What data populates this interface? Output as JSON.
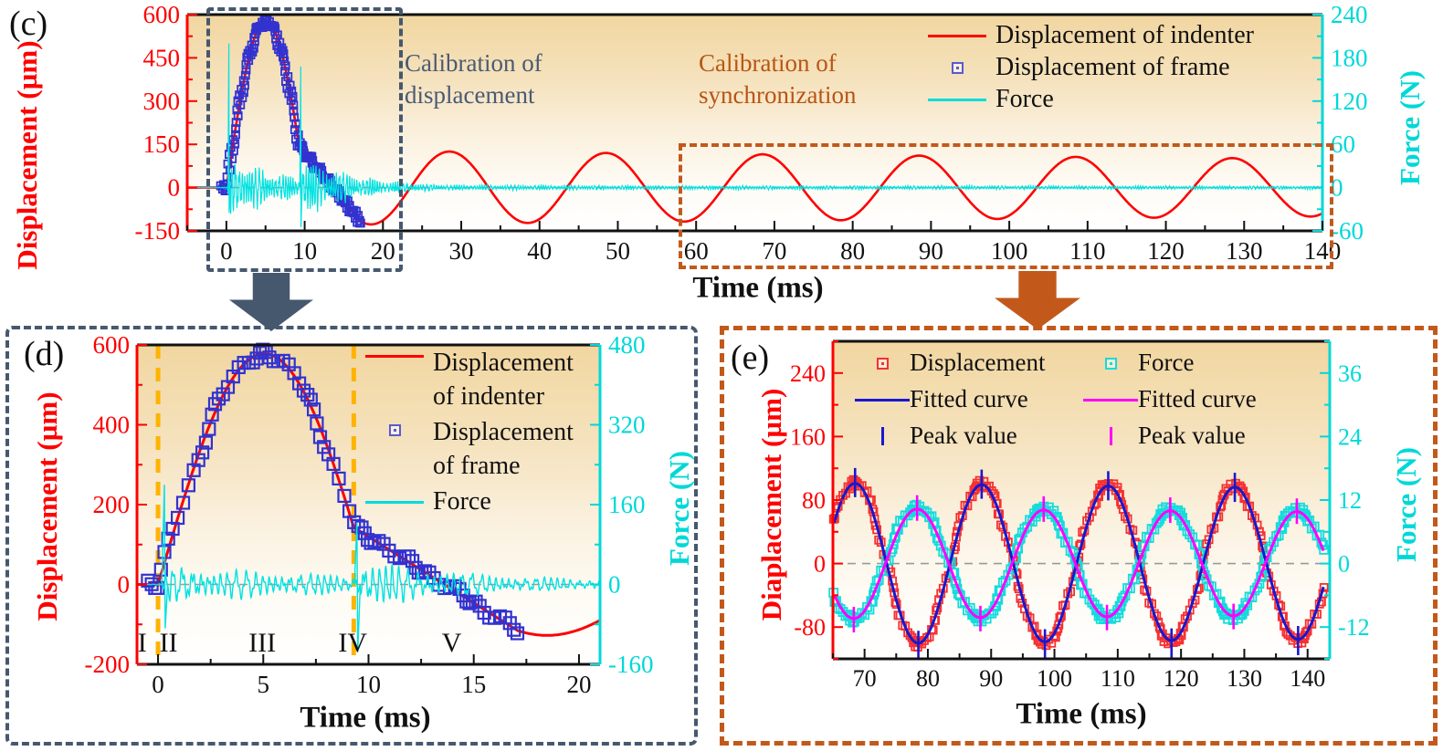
{
  "figure": {
    "background": "#ffffff",
    "callout_arrows": [
      {
        "name": "to-panel-d",
        "color": "#46586e"
      },
      {
        "name": "to-panel-e",
        "color": "#c2591b"
      }
    ],
    "colors": {
      "indenter_red": "#fe0000",
      "frame_blue": "#3232d0",
      "force_cyan": "#00dcdc",
      "fitted_blue": "#1818cf",
      "fitted_magenta": "#ff00ff",
      "box_slate": "#46586e",
      "box_orange": "#c2591b",
      "guide_yellow": "#ffb300",
      "panel_gradient_top": "#f1d6a0"
    }
  },
  "chart_data": [
    {
      "id": "c",
      "panel_label": "(c)",
      "type": "line",
      "xlabel": "Time (ms)",
      "ylabel_left": "Displacement (µm)",
      "ylabel_right": "Force (N)",
      "xlim": [
        -5,
        140
      ],
      "ylim_left": [
        -150,
        600
      ],
      "ylim_right": [
        -60,
        240
      ],
      "xticks": [
        0,
        10,
        20,
        30,
        40,
        50,
        60,
        70,
        80,
        90,
        100,
        110,
        120,
        130,
        140
      ],
      "x_minor_step": 5,
      "yticks_left": [
        600,
        450,
        300,
        150,
        0,
        -150
      ],
      "yl_minor_step": 75,
      "yticks_right": [
        240,
        180,
        120,
        60,
        0,
        -60
      ],
      "yr_minor_step": 30,
      "zero_line": true,
      "legend": [
        {
          "label": "Displacement of indenter",
          "marker": "line",
          "color": "#fe0000"
        },
        {
          "label": "Displacement of frame",
          "marker": "square",
          "color": "#5a5ad2"
        },
        {
          "label": "Force",
          "marker": "line",
          "color": "#00dcdc"
        }
      ],
      "annotations": [
        {
          "text": "Calibration of displacement",
          "color": "#4a5a74"
        },
        {
          "text": "Calibration of synchronization",
          "color": "#b85513"
        }
      ],
      "series": [
        {
          "name": "Displacement of indenter",
          "axis": "left",
          "type": "segments_line",
          "color": "#fe0000",
          "width": 2.6,
          "segments": [
            {
              "type": "flat",
              "t0": -5,
              "t1": 0,
              "v": 0
            },
            {
              "type": "halfsine",
              "t0": 0,
              "t1": 9.3,
              "peak": 578,
              "t_peak": 5.05
            },
            {
              "type": "line",
              "t0": 9.3,
              "t1": 17.1,
              "v0": 143,
              "v1": -116
            },
            {
              "type": "damped_cos",
              "t0": 17.1,
              "t1": 140,
              "amp": 125,
              "period": 20,
              "t_phase": 28.5,
              "decay": 0.002
            }
          ]
        },
        {
          "name": "Displacement of frame",
          "axis": "left",
          "type": "squares_segments",
          "use_series": 0,
          "color": "#3232d0",
          "t0": -0.6,
          "t1": 17.1,
          "step": 0.1,
          "size": 8,
          "jitter": 3.5,
          "stroke_width": 1.8
        },
        {
          "name": "Force",
          "axis": "right",
          "type": "force_noise",
          "color": "#00e2e2",
          "width": 1.2,
          "dt": 0.05,
          "freq": 2.7,
          "amp_profile": [
            [
              -5,
              0
            ],
            [
              0.15,
              1
            ],
            [
              0.5,
              40
            ],
            [
              1.5,
              46
            ],
            [
              3,
              34
            ],
            [
              5,
              27
            ],
            [
              7,
              21
            ],
            [
              9.3,
              16
            ],
            [
              9.7,
              48
            ],
            [
              11,
              38
            ],
            [
              13,
              30
            ],
            [
              15,
              24
            ],
            [
              17,
              18
            ],
            [
              19,
              13
            ],
            [
              22,
              9
            ],
            [
              26,
              5
            ],
            [
              30,
              4
            ],
            [
              60,
              3
            ],
            [
              140,
              2.5
            ]
          ],
          "spikes": [
            {
              "t": 0.32,
              "up": 200,
              "down": -35
            },
            {
              "t": 9.5,
              "up": 168,
              "down": -55
            }
          ]
        }
      ]
    },
    {
      "id": "d",
      "panel_label": "(d)",
      "type": "line",
      "xlabel": "Time (ms)",
      "ylabel_left": "Displacement (µm)",
      "ylabel_right": "Force (N)",
      "xlim": [
        -1,
        21
      ],
      "ylim_left": [
        -200,
        600
      ],
      "ylim_right": [
        -160,
        480
      ],
      "xticks": [
        0,
        5,
        10,
        15,
        20
      ],
      "x_minor_step": 2.5,
      "yticks_left": [
        600,
        400,
        200,
        0,
        -200
      ],
      "yl_minor_step": 100,
      "yticks_right": [
        480,
        320,
        160,
        0,
        -160
      ],
      "yr_minor_step": 80,
      "zero_line": true,
      "vlines": {
        "color": "#ffb300",
        "t": [
          0,
          9.3
        ]
      },
      "phase_markers": {
        "labels": [
          "I",
          "II",
          "III",
          "IV",
          "V"
        ],
        "t": [
          -0.75,
          0.5,
          4.95,
          9.25,
          13.95
        ],
        "v": -168
      },
      "legend": [
        {
          "label": "Displacement of indenter",
          "marker": "line",
          "color": "#fe0000"
        },
        {
          "label": "Displacement of frame",
          "marker": "square",
          "color": "#5a5ad2"
        },
        {
          "label": "Force",
          "marker": "line",
          "color": "#00dcdc"
        }
      ],
      "series": [
        {
          "name": "Displacement of indenter",
          "axis": "left",
          "type": "segments_line",
          "color": "#fe0000",
          "width": 3,
          "segments": [
            {
              "type": "flat",
              "t0": -1,
              "t1": 0,
              "v": 0
            },
            {
              "type": "halfsine",
              "t0": 0,
              "t1": 9.3,
              "peak": 578,
              "t_peak": 5.05
            },
            {
              "type": "line",
              "t0": 9.3,
              "t1": 17.1,
              "v0": 143,
              "v1": -116
            },
            {
              "type": "damped_cos",
              "t0": 17.1,
              "t1": 21,
              "amp": 125,
              "period": 20,
              "t_phase": 28.5,
              "decay": 0.002
            }
          ]
        },
        {
          "name": "Displacement of frame",
          "axis": "left",
          "type": "squares_segments",
          "use_series": 0,
          "color": "#3232d0",
          "t0": -0.6,
          "t1": 17.1,
          "step": 0.2,
          "size": 13,
          "jitter": 4.5,
          "stroke_width": 2.2
        },
        {
          "name": "Force",
          "axis": "right",
          "type": "force_noise",
          "color": "#00e2e2",
          "width": 1.4,
          "dt": 0.02,
          "freq": 2.7,
          "amp_profile": [
            [
              -1,
              0
            ],
            [
              0.15,
              1
            ],
            [
              0.5,
              36
            ],
            [
              1.2,
              44
            ],
            [
              2.5,
              34
            ],
            [
              4,
              30
            ],
            [
              6,
              26
            ],
            [
              8,
              22
            ],
            [
              9.3,
              18
            ],
            [
              9.8,
              52
            ],
            [
              11,
              42
            ],
            [
              13,
              32
            ],
            [
              15,
              24
            ],
            [
              17,
              18
            ],
            [
              19,
              14
            ],
            [
              21,
              12
            ]
          ],
          "spikes": [
            {
              "t": 0.3,
              "up": 200,
              "down": -88
            },
            {
              "t": 9.45,
              "up": 124,
              "down": -136
            }
          ]
        }
      ]
    },
    {
      "id": "e",
      "panel_label": "(e)",
      "type": "line",
      "xlabel": "Time (ms)",
      "ylabel_left": "Diaplacement (µm)",
      "ylabel_right": "Force (N)",
      "xlim": [
        65,
        143.5
      ],
      "ylim_left": [
        -120,
        280
      ],
      "ylim_right": [
        -18,
        42
      ],
      "xticks": [
        70,
        80,
        90,
        100,
        110,
        120,
        130,
        140
      ],
      "x_minor_step": 5,
      "yticks_left": [
        240,
        160,
        80,
        0,
        -80
      ],
      "yl_minor_step": 40,
      "yticks_right": [
        36,
        24,
        12,
        0,
        -12
      ],
      "yr_minor_step": 6,
      "zero_line": true,
      "legend": [
        {
          "label": "Displacement",
          "marker": "square",
          "color": "#f63030"
        },
        {
          "label": "Force",
          "marker": "square",
          "color": "#12dcdc"
        },
        {
          "label": "Fitted curve",
          "marker": "line",
          "color": "#1818cf"
        },
        {
          "label": "Fitted curve",
          "marker": "line",
          "color": "#ff00ff"
        },
        {
          "label": "Peak value",
          "marker": "vtick",
          "color": "#1818cf"
        },
        {
          "label": "Peak value",
          "marker": "vtick",
          "color": "#ff00ff"
        }
      ],
      "series": [
        {
          "name": "Displacement",
          "axis": "left",
          "type": "squares_cos",
          "color": "#f63030",
          "amp": 103,
          "period": 20,
          "t_phase": 68.5,
          "decay": 0.0008,
          "t0": 65.2,
          "t1": 142.5,
          "step": 0.28,
          "size": 8,
          "jitter": 3,
          "stroke_width": 1.8
        },
        {
          "name": "Force",
          "axis": "right",
          "type": "squares_cos",
          "color": "#12dcdc",
          "amp": 10.6,
          "period": 20,
          "t_phase": 78.3,
          "decay": 0.0008,
          "t0": 65.2,
          "t1": 142.5,
          "step": 0.28,
          "size": 9,
          "jitter": 3,
          "stroke_width": 1.8
        },
        {
          "name": "Fitted curve (displacement)",
          "axis": "left",
          "type": "damped_cos_line",
          "color": "#1818cf",
          "width": 3,
          "amp": 101,
          "period": 20,
          "t_phase": 68.5,
          "decay": 0.0008,
          "t0": 65.2,
          "t1": 142.5
        },
        {
          "name": "Fitted curve (force)",
          "axis": "right",
          "type": "damped_cos_line",
          "color": "#ff00ff",
          "width": 3,
          "amp": 10.3,
          "period": 20,
          "t_phase": 78.3,
          "decay": 0.0008,
          "t0": 65.2,
          "t1": 142.5
        },
        {
          "name": "Peak value (displacement)",
          "axis": "left",
          "type": "peak_ticks",
          "color": "#1818cf",
          "half": 16,
          "width": 2.6,
          "points": [
            [
              68.5,
              102
            ],
            [
              78.5,
              -103
            ],
            [
              88.5,
              100
            ],
            [
              98.5,
              -101
            ],
            [
              108.5,
              98
            ],
            [
              118.5,
              -100
            ],
            [
              128.5,
              96
            ],
            [
              138.5,
              -97
            ]
          ]
        },
        {
          "name": "Peak value (force)",
          "axis": "right",
          "type": "peak_ticks",
          "color": "#ff00ff",
          "half": 14,
          "width": 2.6,
          "points": [
            [
              68.3,
              -10.6
            ],
            [
              78.3,
              10.5
            ],
            [
              88.3,
              -10.4
            ],
            [
              98.3,
              10.3
            ],
            [
              108.3,
              -10.2
            ],
            [
              118.3,
              10.1
            ],
            [
              128.3,
              -10
            ],
            [
              138.3,
              9.9
            ]
          ]
        }
      ]
    }
  ]
}
